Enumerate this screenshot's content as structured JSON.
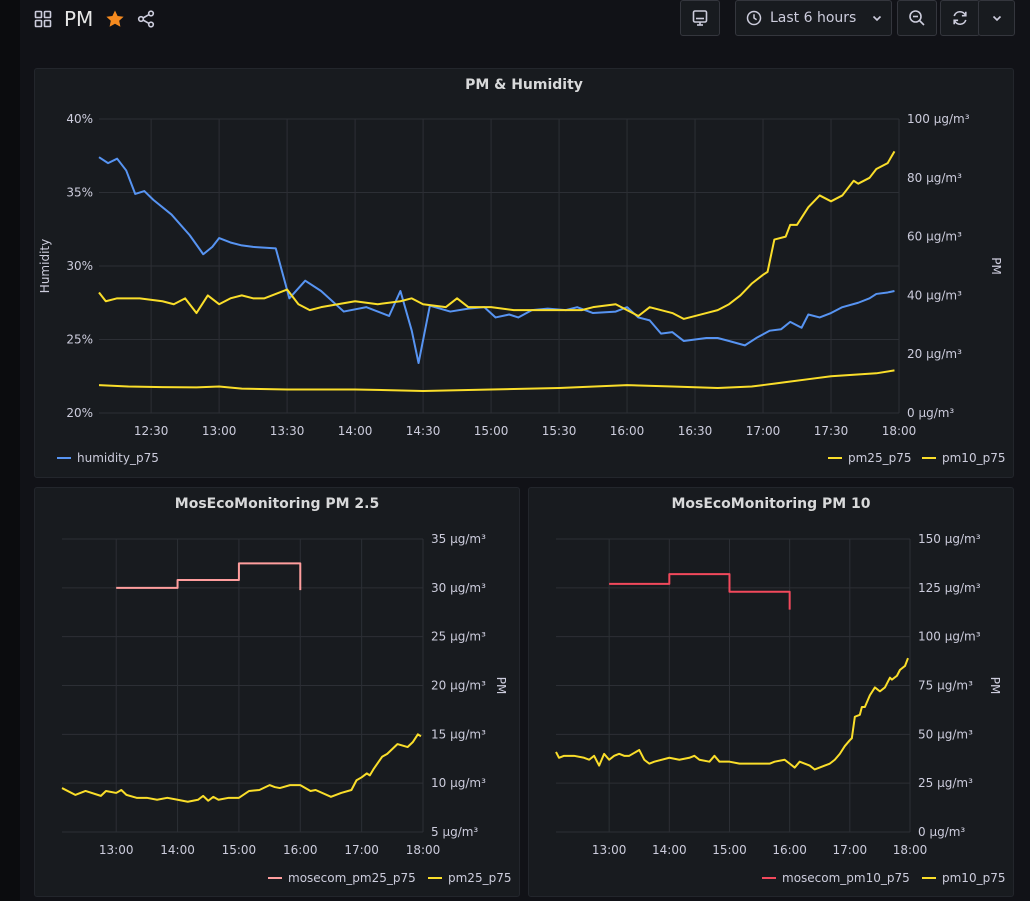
{
  "dashboard": {
    "title": "PM",
    "time_range": "Last 6 hours"
  },
  "colors": {
    "humidity": "#5794f2",
    "yellow": "#fade2a",
    "mosecom25": "#ff9e9e",
    "mosecom10": "#f2495c",
    "grid": "#2c2f35",
    "axis_text": "#ccccdc"
  },
  "icons": {
    "grid": "apps-grid-icon",
    "star": "star-icon",
    "share": "share-icon",
    "tv": "tv-mode-icon",
    "clock": "clock-icon",
    "zoom": "zoom-out-icon",
    "refresh": "refresh-icon",
    "chevron": "chevron-down-icon"
  },
  "panels": [
    {
      "title": "PM & Humidity",
      "legend_left": [
        "humidity_p75"
      ],
      "legend_right": [
        "pm25_p75",
        "pm10_p75"
      ]
    },
    {
      "title": "MosEcoMonitoring PM 2.5",
      "legend": [
        "mosecom_pm25_p75",
        "pm25_p75"
      ]
    },
    {
      "title": "MosEcoMonitoring PM 10",
      "legend": [
        "mosecom_pm10_p75",
        "pm10_p75"
      ]
    }
  ],
  "chart_data": [
    {
      "type": "line",
      "title": "PM & Humidity",
      "xlabel": "",
      "ylabel": "Humidity",
      "y2label": "PM",
      "x_ticks": [
        "12:30",
        "13:00",
        "13:30",
        "14:00",
        "14:30",
        "15:00",
        "15:30",
        "16:00",
        "16:30",
        "17:00",
        "17:30",
        "18:00"
      ],
      "x_range": [
        "12:07",
        "18:00"
      ],
      "y_ticks": [
        "20%",
        "25%",
        "30%",
        "35%",
        "40%"
      ],
      "y_range": [
        20,
        40
      ],
      "y2_ticks": [
        "0 µg/m³",
        "20 µg/m³",
        "40 µg/m³",
        "60 µg/m³",
        "80 µg/m³",
        "100 µg/m³"
      ],
      "y2_range": [
        0,
        100
      ],
      "grid": true,
      "legend": "bottom",
      "series": [
        {
          "name": "humidity_p75",
          "axis": "left",
          "x": [
            "12:07",
            "12:11",
            "12:15",
            "12:19",
            "12:23",
            "12:27",
            "12:31",
            "12:39",
            "12:47",
            "12:53",
            "12:57",
            "13:00",
            "13:05",
            "13:10",
            "13:15",
            "13:25",
            "13:31",
            "13:38",
            "13:45",
            "13:55",
            "14:05",
            "14:15",
            "14:20",
            "14:25",
            "14:28",
            "14:33",
            "14:42",
            "14:50",
            "14:57",
            "15:02",
            "15:08",
            "15:12",
            "15:18",
            "15:25",
            "15:33",
            "15:38",
            "15:45",
            "15:55",
            "16:00",
            "16:05",
            "16:10",
            "16:15",
            "16:20",
            "16:25",
            "16:30",
            "16:35",
            "16:40",
            "16:45",
            "16:52",
            "16:57",
            "17:03",
            "17:08",
            "17:12",
            "17:17",
            "17:20",
            "17:25",
            "17:30",
            "17:35",
            "17:42",
            "17:47",
            "17:50",
            "17:55",
            "17:58"
          ],
          "values": [
            37.4,
            37.0,
            37.3,
            36.5,
            34.9,
            35.1,
            34.5,
            33.5,
            32.1,
            30.8,
            31.3,
            31.9,
            31.6,
            31.4,
            31.3,
            31.2,
            27.8,
            29.0,
            28.3,
            26.9,
            27.2,
            26.6,
            28.3,
            25.6,
            23.4,
            27.3,
            26.9,
            27.1,
            27.2,
            26.5,
            26.7,
            26.5,
            27.0,
            27.1,
            27.0,
            27.2,
            26.8,
            26.9,
            27.2,
            26.5,
            26.3,
            25.4,
            25.5,
            24.9,
            25.0,
            25.1,
            25.1,
            24.9,
            24.6,
            25.1,
            25.6,
            25.7,
            26.2,
            25.8,
            26.7,
            26.5,
            26.8,
            27.2,
            27.5,
            27.8,
            28.1,
            28.2,
            28.3
          ]
        },
        {
          "name": "pm25_p75",
          "axis": "right",
          "x": [
            "12:07",
            "12:20",
            "12:35",
            "12:50",
            "13:00",
            "13:10",
            "13:30",
            "14:00",
            "14:30",
            "15:00",
            "15:30",
            "16:00",
            "16:20",
            "16:40",
            "16:55",
            "17:00",
            "17:05",
            "17:10",
            "17:20",
            "17:30",
            "17:40",
            "17:50",
            "17:58"
          ],
          "values": [
            9.5,
            9.0,
            8.8,
            8.7,
            9.0,
            8.3,
            8.0,
            8.0,
            7.5,
            8.0,
            8.5,
            9.5,
            9.0,
            8.5,
            9.0,
            9.5,
            10.0,
            10.5,
            11.5,
            12.5,
            13.0,
            13.5,
            14.5
          ]
        },
        {
          "name": "pm10_p75",
          "axis": "right",
          "x": [
            "12:07",
            "12:10",
            "12:15",
            "12:25",
            "12:35",
            "12:40",
            "12:45",
            "12:50",
            "12:55",
            "13:00",
            "13:05",
            "13:10",
            "13:15",
            "13:20",
            "13:30",
            "13:35",
            "13:40",
            "13:45",
            "14:00",
            "14:10",
            "14:20",
            "14:25",
            "14:30",
            "14:40",
            "14:45",
            "14:50",
            "15:00",
            "15:10",
            "15:20",
            "15:30",
            "15:40",
            "15:45",
            "15:55",
            "16:00",
            "16:05",
            "16:10",
            "16:20",
            "16:25",
            "16:35",
            "16:40",
            "16:45",
            "16:50",
            "16:55",
            "17:00",
            "17:02",
            "17:05",
            "17:10",
            "17:12",
            "17:15",
            "17:20",
            "17:25",
            "17:30",
            "17:35",
            "17:40",
            "17:42",
            "17:47",
            "17:50",
            "17:55",
            "17:58"
          ],
          "values": [
            41,
            38,
            39,
            39,
            38,
            37,
            39,
            34,
            40,
            37,
            39,
            40,
            39,
            39,
            42,
            37,
            35,
            36,
            38,
            37,
            38,
            39,
            37,
            36,
            39,
            36,
            36,
            35,
            35,
            35,
            35,
            36,
            37,
            35,
            33,
            36,
            34,
            32,
            34,
            35,
            37,
            40,
            44,
            47,
            48,
            59,
            60,
            64,
            64,
            70,
            74,
            72,
            74,
            79,
            78,
            80,
            83,
            85,
            89
          ]
        }
      ]
    },
    {
      "type": "line",
      "title": "MosEcoMonitoring PM 2.5",
      "x_ticks": [
        "13:00",
        "14:00",
        "15:00",
        "16:00",
        "17:00",
        "18:00"
      ],
      "x_range": [
        "12:07",
        "18:00"
      ],
      "y_ticks": [
        "5 µg/m³",
        "10 µg/m³",
        "15 µg/m³",
        "20 µg/m³",
        "25 µg/m³",
        "30 µg/m³",
        "35 µg/m³"
      ],
      "y_range": [
        5,
        35
      ],
      "ylabel": "PM",
      "grid": true,
      "legend": "bottom-right",
      "series": [
        {
          "name": "mosecom_pm25_p75",
          "step": true,
          "x": [
            "13:00",
            "14:00",
            "15:00",
            "16:00"
          ],
          "values": [
            30.0,
            30.8,
            32.5,
            31.0
          ]
        },
        {
          "name": "pm25_p75",
          "x": [
            "12:07",
            "12:20",
            "12:30",
            "12:45",
            "12:50",
            "13:00",
            "13:05",
            "13:10",
            "13:20",
            "13:30",
            "13:40",
            "13:50",
            "14:00",
            "14:10",
            "14:20",
            "14:25",
            "14:30",
            "14:35",
            "14:40",
            "14:50",
            "15:00",
            "15:10",
            "15:20",
            "15:30",
            "15:35",
            "15:40",
            "15:50",
            "16:00",
            "16:10",
            "16:15",
            "16:30",
            "16:40",
            "16:50",
            "16:55",
            "17:00",
            "17:05",
            "17:08",
            "17:12",
            "17:20",
            "17:25",
            "17:30",
            "17:35",
            "17:45",
            "17:50",
            "17:55",
            "17:58"
          ],
          "values": [
            9.5,
            8.8,
            9.2,
            8.7,
            9.2,
            9.0,
            9.3,
            8.8,
            8.5,
            8.5,
            8.3,
            8.5,
            8.3,
            8.1,
            8.3,
            8.7,
            8.2,
            8.6,
            8.3,
            8.5,
            8.5,
            9.2,
            9.3,
            9.8,
            9.6,
            9.5,
            9.8,
            9.8,
            9.2,
            9.3,
            8.6,
            9.0,
            9.3,
            10.3,
            10.6,
            11.0,
            10.8,
            11.5,
            12.7,
            13.0,
            13.5,
            14.0,
            13.7,
            14.2,
            15.0,
            14.8
          ]
        }
      ]
    },
    {
      "type": "line",
      "title": "MosEcoMonitoring PM 10",
      "x_ticks": [
        "13:00",
        "14:00",
        "15:00",
        "16:00",
        "17:00",
        "18:00"
      ],
      "x_range": [
        "12:07",
        "18:00"
      ],
      "y_ticks": [
        "0 µg/m³",
        "25 µg/m³",
        "50 µg/m³",
        "75 µg/m³",
        "100 µg/m³",
        "125 µg/m³",
        "150 µg/m³"
      ],
      "y_range": [
        0,
        150
      ],
      "ylabel": "PM",
      "grid": true,
      "legend": "bottom-right",
      "series": [
        {
          "name": "mosecom_pm10_p75",
          "step": true,
          "x": [
            "13:00",
            "14:00",
            "15:00",
            "16:00"
          ],
          "values": [
            127,
            132,
            123,
            120
          ]
        },
        {
          "name": "pm10_p75",
          "x": [
            "12:07",
            "12:10",
            "12:15",
            "12:25",
            "12:35",
            "12:40",
            "12:45",
            "12:50",
            "12:55",
            "13:00",
            "13:05",
            "13:10",
            "13:15",
            "13:20",
            "13:30",
            "13:35",
            "13:40",
            "13:45",
            "14:00",
            "14:10",
            "14:20",
            "14:25",
            "14:30",
            "14:40",
            "14:45",
            "14:50",
            "15:00",
            "15:10",
            "15:20",
            "15:30",
            "15:40",
            "15:45",
            "15:55",
            "16:00",
            "16:05",
            "16:10",
            "16:20",
            "16:25",
            "16:35",
            "16:40",
            "16:45",
            "16:50",
            "16:55",
            "17:00",
            "17:02",
            "17:05",
            "17:10",
            "17:12",
            "17:15",
            "17:20",
            "17:25",
            "17:30",
            "17:35",
            "17:40",
            "17:42",
            "17:47",
            "17:50",
            "17:55",
            "17:58"
          ],
          "values": [
            41,
            38,
            39,
            39,
            38,
            37,
            39,
            34,
            40,
            37,
            39,
            40,
            39,
            39,
            42,
            37,
            35,
            36,
            38,
            37,
            38,
            39,
            37,
            36,
            39,
            36,
            36,
            35,
            35,
            35,
            35,
            36,
            37,
            35,
            33,
            36,
            34,
            32,
            34,
            35,
            37,
            40,
            44,
            47,
            48,
            59,
            60,
            64,
            64,
            70,
            74,
            72,
            74,
            79,
            78,
            80,
            83,
            85,
            89
          ]
        }
      ]
    }
  ]
}
